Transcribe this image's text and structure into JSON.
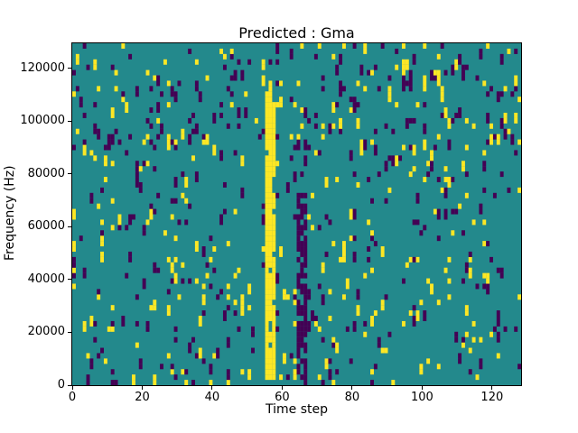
{
  "chart_data": {
    "type": "heatmap",
    "title": "Predicted : Gma",
    "xlabel": "Time step",
    "ylabel": "Frequency (Hz)",
    "x_range": [
      0,
      128.3
    ],
    "y_range": [
      0,
      129500
    ],
    "x_ticks": [
      0,
      20,
      40,
      60,
      80,
      100,
      120
    ],
    "y_ticks": [
      0,
      20000,
      40000,
      60000,
      80000,
      100000,
      120000
    ],
    "grid": {
      "cols": 128,
      "rows": 64
    },
    "colormap": {
      "low": "#440154",
      "mid": "#23898c",
      "high": "#fde725"
    },
    "background_value": "mid",
    "noise": {
      "seed": 42,
      "high_density": 0.04,
      "low_density": 0.04,
      "run_extend_prob": 0.3
    },
    "features": [
      {
        "name": "yellow-vertical-band",
        "value": "high",
        "x": [
          55,
          58
        ],
        "y_hz": [
          2000,
          112000
        ],
        "gap_prob": 0.07
      },
      {
        "name": "dark-vertical-band",
        "value": "low",
        "x": [
          64,
          67
        ],
        "y_hz": [
          2000,
          72000
        ],
        "gap_prob": 0.3
      }
    ],
    "legend": "none",
    "grid_lines": "off"
  }
}
